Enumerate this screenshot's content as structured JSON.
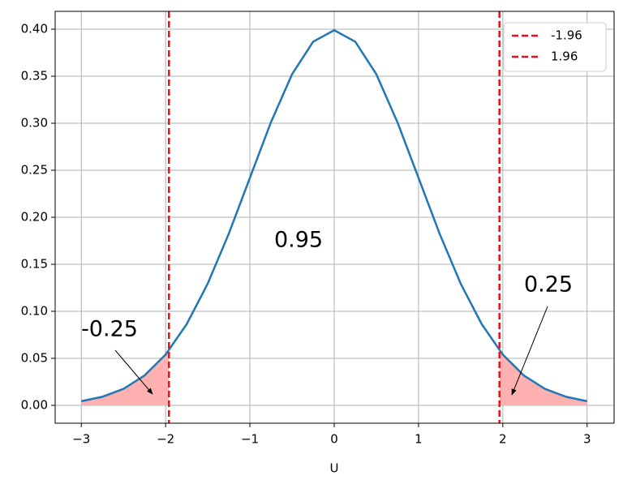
{
  "chart_data": {
    "type": "line",
    "xlabel": "U",
    "xlim": [
      -3.31,
      3.32
    ],
    "ylim": [
      -0.019,
      0.419
    ],
    "xticks": [
      {
        "value": -3,
        "label": "−3"
      },
      {
        "value": -2,
        "label": "−2"
      },
      {
        "value": -1,
        "label": "−1"
      },
      0,
      1,
      2,
      3
    ],
    "yticks": [
      {
        "value": 0,
        "label": "0.00"
      },
      {
        "value": 0.05,
        "label": "0.05"
      },
      {
        "value": 0.1,
        "label": "0.10"
      },
      {
        "value": 0.15,
        "label": "0.15"
      },
      {
        "value": 0.2,
        "label": "0.20"
      },
      {
        "value": 0.25,
        "label": "0.25"
      },
      {
        "value": 0.3,
        "label": "0.30"
      },
      {
        "value": 0.35,
        "label": "0.35"
      },
      {
        "value": 0.4,
        "label": "0.40"
      }
    ],
    "grid": true,
    "legend": "upper right",
    "series": [
      {
        "color": "#1f77b4",
        "x": [
          -3,
          -2.75,
          -2.5,
          -2.25,
          -2,
          -1.75,
          -1.5,
          -1.25,
          -1,
          -0.75,
          -0.5,
          -0.25,
          0,
          0.25,
          0.5,
          0.75,
          1,
          1.25,
          1.5,
          1.75,
          2,
          2.25,
          2.5,
          2.75,
          3
        ],
        "values": [
          0.0044,
          0.0091,
          0.0175,
          0.0317,
          0.054,
          0.0863,
          0.1295,
          0.1826,
          0.242,
          0.3011,
          0.3521,
          0.3867,
          0.3989,
          0.3867,
          0.3521,
          0.3011,
          0.242,
          0.1826,
          0.1295,
          0.0863,
          0.054,
          0.0317,
          0.0175,
          0.0091,
          0.0044
        ]
      }
    ],
    "fills": [
      {
        "color": "#ffb0b0",
        "x": [
          -3,
          -2.75,
          -2.5,
          -2.25,
          -2,
          -1.96
        ],
        "values": [
          0.0044,
          0.0091,
          0.0175,
          0.0317,
          0.054,
          0.0584
        ]
      },
      {
        "color": "#ffb0b0",
        "x": [
          1.96,
          2,
          2.25,
          2.5,
          2.75,
          3
        ],
        "values": [
          0.0584,
          0.054,
          0.0317,
          0.0175,
          0.0091,
          0.0044
        ]
      }
    ],
    "vlines": [
      {
        "name": "-1.96",
        "value": -1.96,
        "color": "#e8111a"
      },
      {
        "name": "1.96",
        "value": 1.96,
        "color": "#e8111a"
      }
    ],
    "annotations": [
      "0.95",
      "-0.25",
      "0.25"
    ]
  }
}
